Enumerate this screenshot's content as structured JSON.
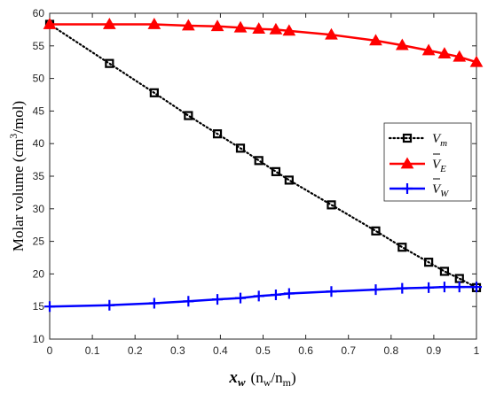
{
  "chart_data": {
    "type": "line",
    "xlabel_symbol": "x",
    "xlabel_subscript": "w",
    "xlabel_unit_open": "(n",
    "xlabel_unit_sub1": "w",
    "xlabel_unit_mid": "/n",
    "xlabel_unit_sub2": "m",
    "xlabel_unit_close": ")",
    "ylabel_text": "Molar volume (cm",
    "ylabel_sup": "3",
    "ylabel_tail": "/mol)",
    "xlim": [
      0,
      1
    ],
    "ylim": [
      10,
      60
    ],
    "xticks": [
      "0",
      "0.1",
      "0.2",
      "0.3",
      "0.4",
      "0.5",
      "0.6",
      "0.7",
      "0.8",
      "0.9",
      "1"
    ],
    "yticks": [
      "10",
      "15",
      "20",
      "25",
      "30",
      "35",
      "40",
      "45",
      "50",
      "55",
      "60"
    ],
    "grid": false,
    "legend_position": "center-right",
    "series": [
      {
        "name": "V",
        "name_sub": "m",
        "bar": false,
        "color": "#000000",
        "line_style": "dotted",
        "marker": "square",
        "x": [
          0,
          0.14,
          0.245,
          0.325,
          0.393,
          0.447,
          0.49,
          0.53,
          0.561,
          0.66,
          0.764,
          0.826,
          0.888,
          0.925,
          0.96,
          1
        ],
        "y": [
          58.3,
          52.3,
          47.8,
          44.3,
          41.5,
          39.3,
          37.4,
          35.7,
          34.4,
          30.6,
          26.6,
          24.1,
          21.8,
          20.4,
          19.3,
          17.9
        ]
      },
      {
        "name": "V",
        "name_sub": "E",
        "bar": true,
        "color": "#ff0000",
        "line_style": "solid",
        "marker": "triangle",
        "x": [
          0,
          0.14,
          0.245,
          0.325,
          0.393,
          0.447,
          0.49,
          0.53,
          0.561,
          0.66,
          0.764,
          0.826,
          0.888,
          0.925,
          0.96,
          1
        ],
        "y": [
          58.3,
          58.3,
          58.3,
          58.1,
          58.0,
          57.8,
          57.6,
          57.5,
          57.3,
          56.7,
          55.8,
          55.1,
          54.3,
          53.8,
          53.3,
          52.5
        ]
      },
      {
        "name": "V",
        "name_sub": "W",
        "bar": true,
        "color": "#0000ff",
        "line_style": "solid",
        "marker": "plus",
        "x": [
          0,
          0.14,
          0.245,
          0.325,
          0.393,
          0.447,
          0.49,
          0.53,
          0.561,
          0.66,
          0.764,
          0.826,
          0.888,
          0.925,
          0.96,
          1
        ],
        "y": [
          15.0,
          15.2,
          15.5,
          15.8,
          16.1,
          16.3,
          16.6,
          16.8,
          17.0,
          17.3,
          17.6,
          17.8,
          17.9,
          18.0,
          18.0,
          18.0
        ]
      }
    ]
  }
}
